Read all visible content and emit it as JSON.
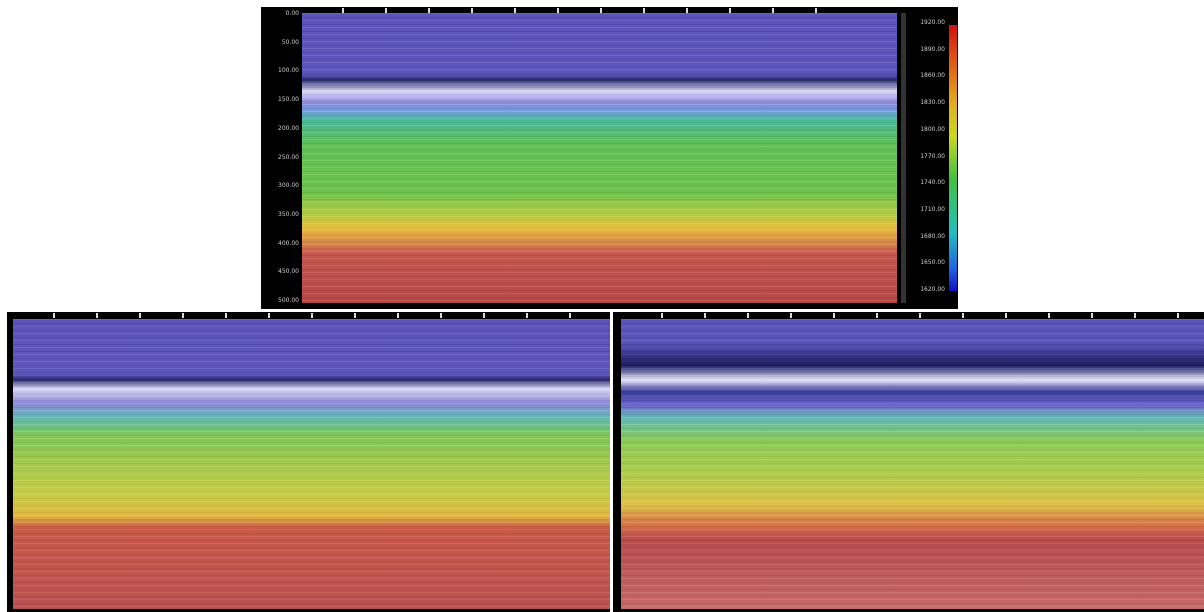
{
  "depth_axis": {
    "labels": [
      "0.00",
      "50.00",
      "100.00",
      "150.00",
      "200.00",
      "250.00",
      "300.00",
      "350.00",
      "400.00",
      "450.00",
      "500.00"
    ]
  },
  "colorbar": {
    "labels": [
      "1920.00",
      "1890.00",
      "1860.00",
      "1830.00",
      "1800.00",
      "1770.00",
      "1740.00",
      "1710.00",
      "1680.00",
      "1650.00",
      "1620.00"
    ]
  }
}
